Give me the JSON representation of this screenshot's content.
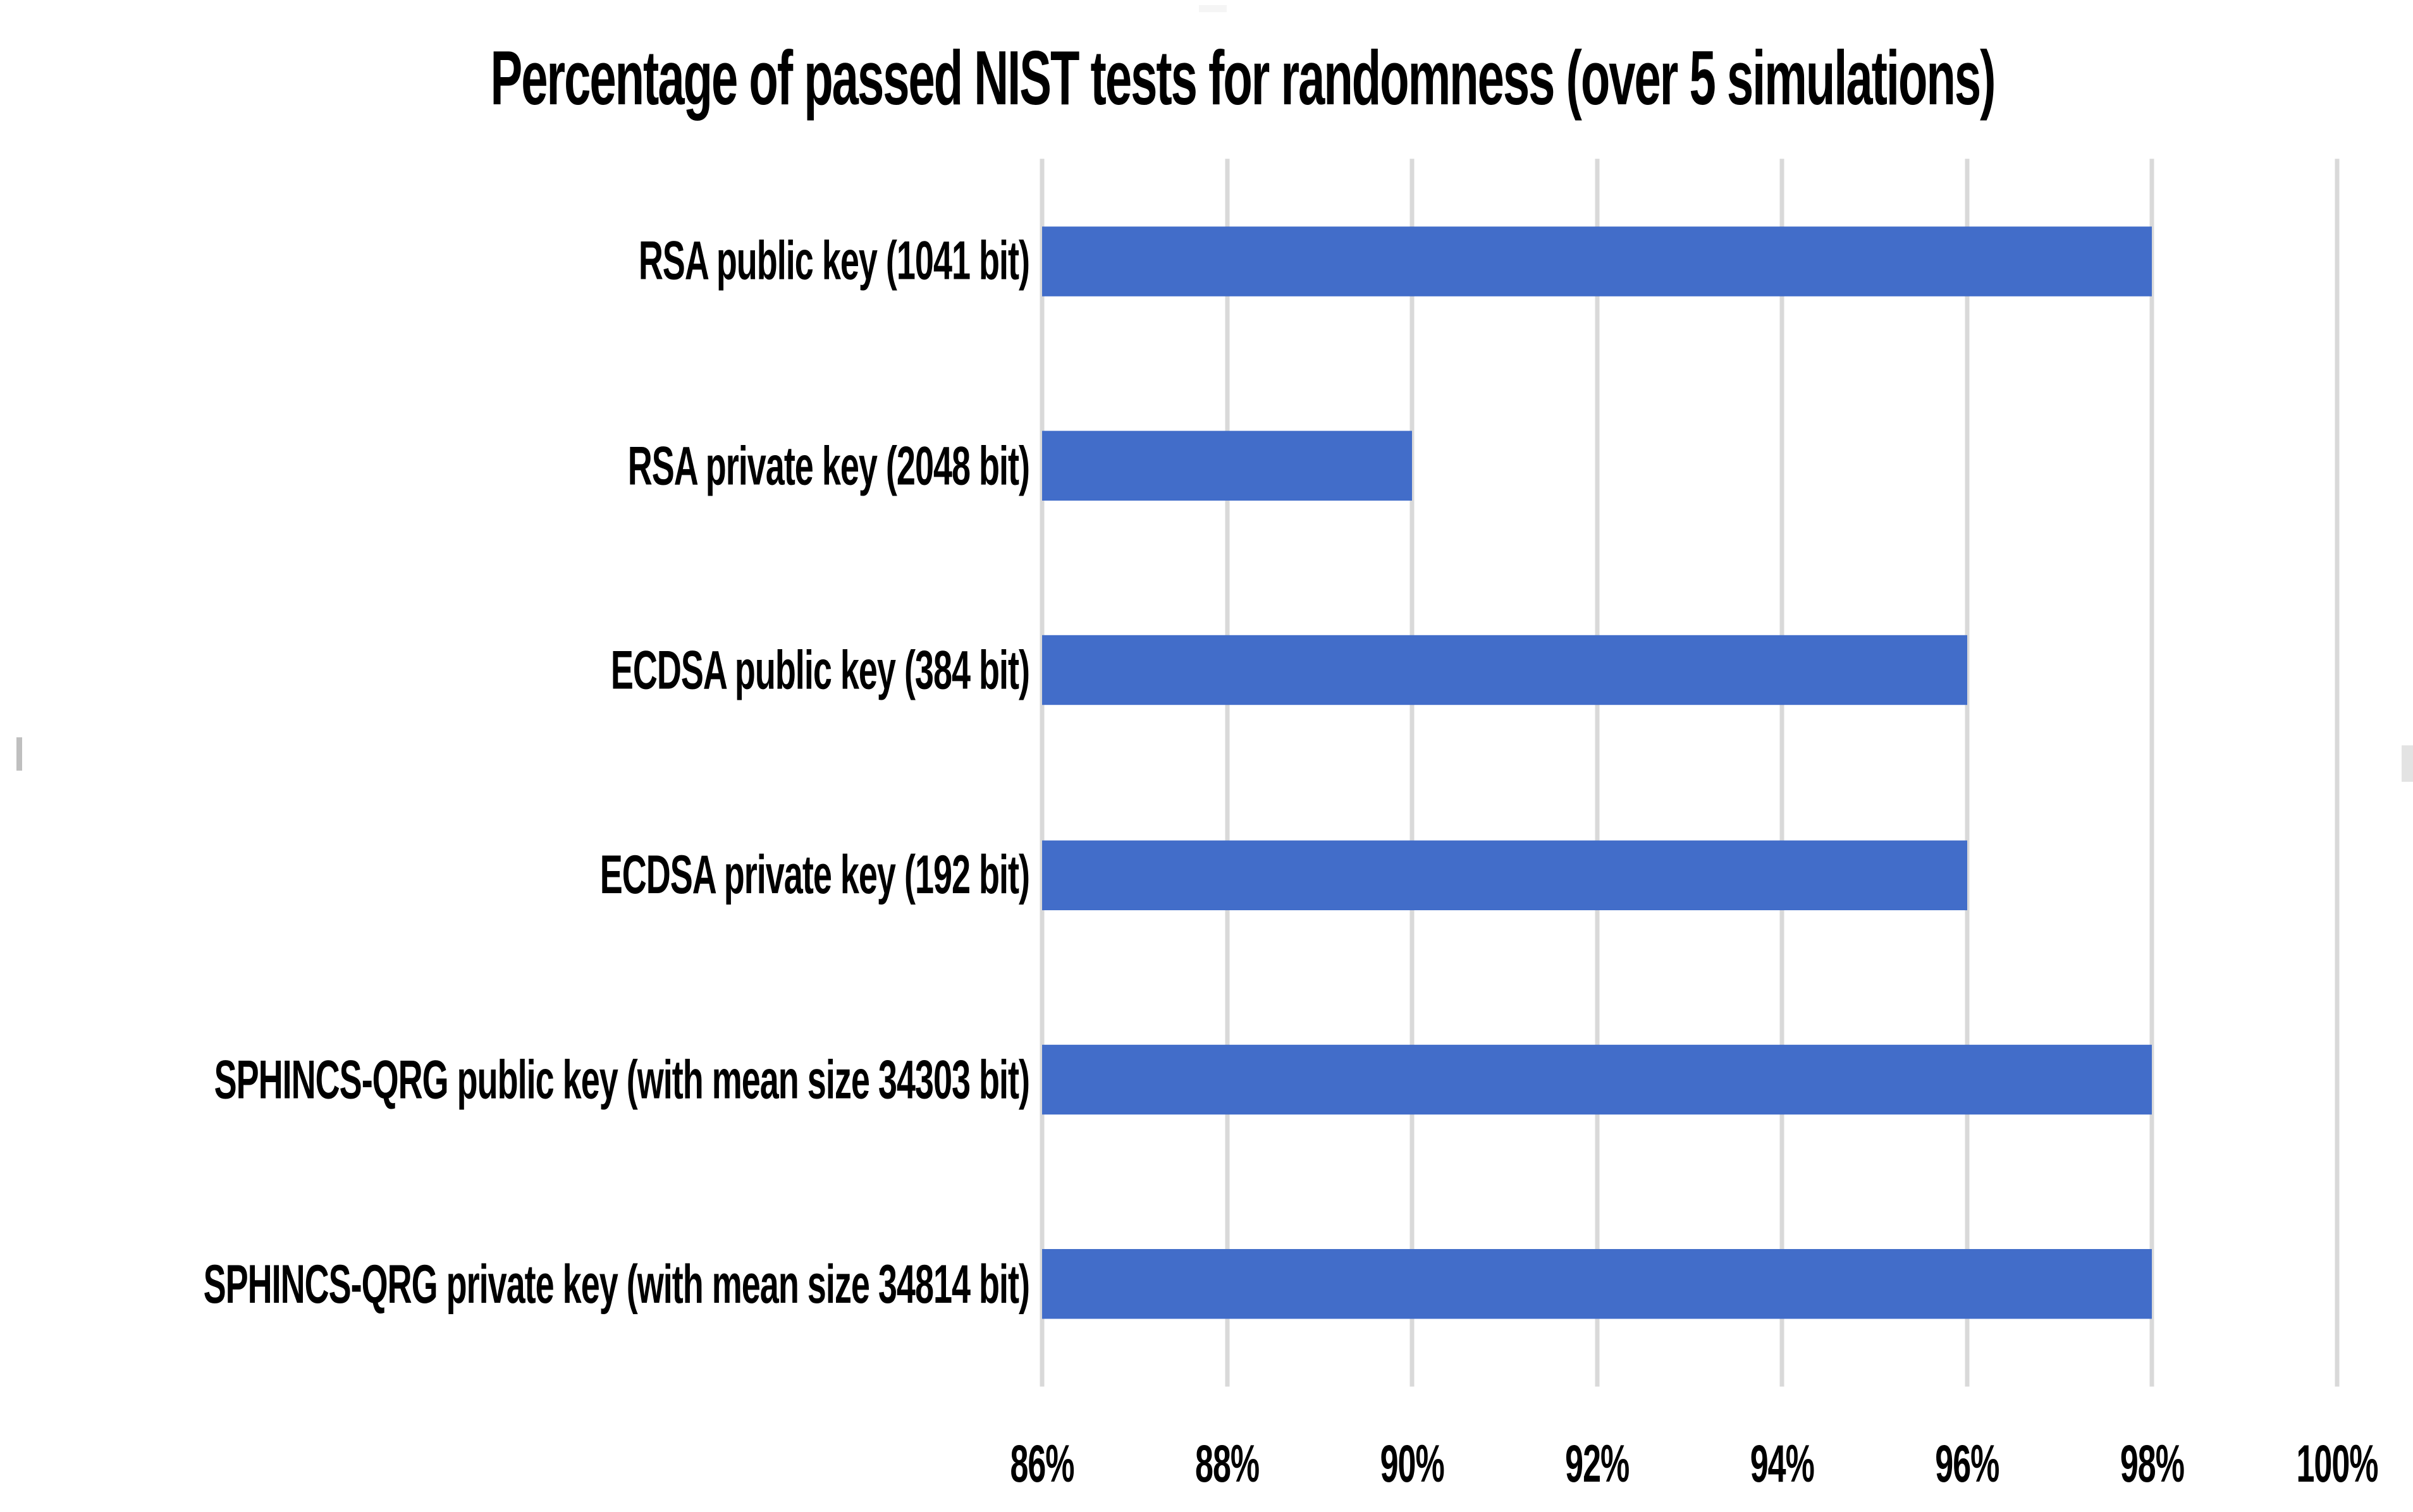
{
  "chart_data": {
    "type": "bar",
    "orientation": "horizontal",
    "title": "Percentage of passed NIST tests for randomness (over 5 simulations)",
    "categories": [
      "RSA public key (1041 bit)",
      "RSA private key (2048 bit)",
      "ECDSA public key (384 bit)",
      "ECDSA private key (192 bit)",
      "SPHINCS-QRG public key (with mean size 34303 bit)",
      "SPHINCS-QRG private key (with mean size 34814 bit)"
    ],
    "values": [
      98,
      90,
      96,
      96,
      98,
      98
    ],
    "value_unit": "%",
    "xlim": [
      86,
      100
    ],
    "x_ticks": [
      {
        "value": 86,
        "label": "86%"
      },
      {
        "value": 88,
        "label": "88%"
      },
      {
        "value": 90,
        "label": "90%"
      },
      {
        "value": 92,
        "label": "92%"
      },
      {
        "value": 94,
        "label": "94%"
      },
      {
        "value": 96,
        "label": "96%"
      },
      {
        "value": 98,
        "label": "98%"
      },
      {
        "value": 100,
        "label": "100%"
      }
    ],
    "grid": "vertical-only",
    "legend": "none",
    "colors": {
      "bar": "#426DC9",
      "gridline": "#D9D9D9",
      "text": "#000000",
      "background": "#FFFFFF"
    }
  }
}
